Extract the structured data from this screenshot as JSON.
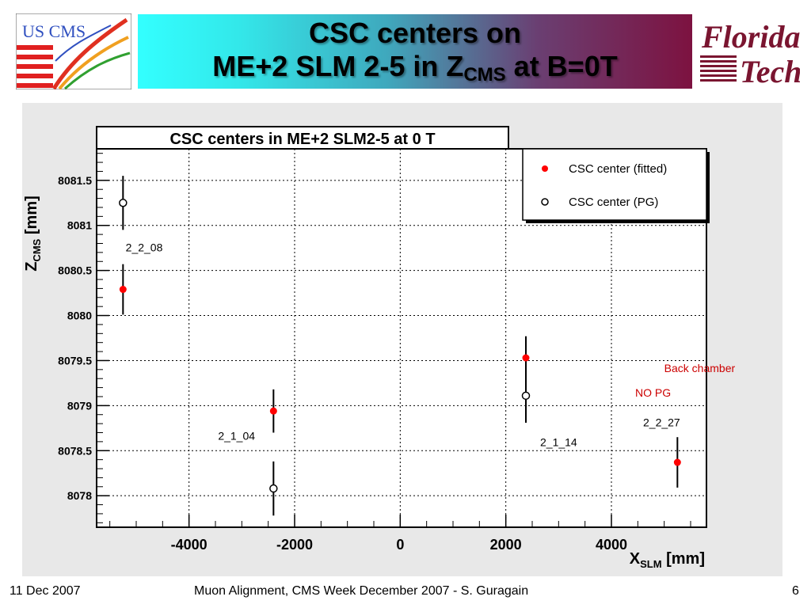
{
  "slide": {
    "title_line1": "CSC centers on",
    "title_line2_prefix": "ME+2 SLM 2-5 in Z",
    "title_line2_sub": "CMS",
    "title_line2_suffix": " at B=0T",
    "logo_left_text": "US CMS",
    "logo_right_line1": "Florida",
    "logo_right_line2": "Tech"
  },
  "footer": {
    "date": "11 Dec 2007",
    "center": "Muon Alignment, CMS Week December 2007  - S. Guragain",
    "page": "6"
  },
  "colors": {
    "fitted": "#ff0000",
    "pg": "#000000",
    "annotation_red": "#cc0000",
    "panel_bg": "#e8e8e8"
  },
  "chart_data": {
    "type": "scatter",
    "title": "CSC centers in ME+2 SLM2-5 at 0 T",
    "xlabel_main": "X",
    "xlabel_sub": "SLM",
    "xlabel_unit": " [mm]",
    "ylabel_main": "Z",
    "ylabel_sub": "CMS",
    "ylabel_unit": " [mm]",
    "xlim": [
      -5750,
      5800
    ],
    "ylim": [
      8077.65,
      8081.85
    ],
    "x_ticks": [
      -4000,
      -2000,
      0,
      2000,
      4000
    ],
    "x_tick_labels": [
      "-4000",
      "-2000",
      "0",
      "2000",
      "4000"
    ],
    "y_ticks": [
      8078,
      8078.5,
      8079,
      8079.5,
      8080,
      8080.5,
      8081,
      8081.5
    ],
    "y_tick_labels": [
      "8078",
      "8078.5",
      "8079",
      "8079.5",
      "8080",
      "8080.5",
      "8081",
      "8081.5"
    ],
    "grid": true,
    "legend_position": "top-right",
    "series": [
      {
        "name": "CSC center (fitted)",
        "marker": "filled",
        "points": [
          {
            "x": -5250,
            "y": 8080.29,
            "err": 0.28
          },
          {
            "x": -2400,
            "y": 8078.94,
            "err": 0.24
          },
          {
            "x": 2380,
            "y": 8079.53,
            "err": 0.24
          },
          {
            "x": 5250,
            "y": 8078.37,
            "err": 0.28
          }
        ]
      },
      {
        "name": "CSC center (PG)",
        "marker": "open",
        "points": [
          {
            "x": -5250,
            "y": 8081.25,
            "err": 0.3
          },
          {
            "x": -2400,
            "y": 8078.08,
            "err": 0.3
          },
          {
            "x": 2380,
            "y": 8079.11,
            "err": 0.3
          }
        ]
      }
    ],
    "annotations": [
      {
        "text": "2_2_08",
        "x": -5200,
        "y": 8080.71,
        "color": "black"
      },
      {
        "text": "2_1_04",
        "x": -3450,
        "y": 8078.62,
        "color": "black"
      },
      {
        "text": "2_1_14",
        "x": 2650,
        "y": 8078.55,
        "color": "black"
      },
      {
        "text": "2_2_27",
        "x": 4600,
        "y": 8078.77,
        "color": "black"
      },
      {
        "text": "Back chamber",
        "x": 5000,
        "y": 8079.37,
        "color": "red"
      },
      {
        "text": "NO PG",
        "x": 4450,
        "y": 8079.1,
        "color": "red"
      }
    ]
  }
}
